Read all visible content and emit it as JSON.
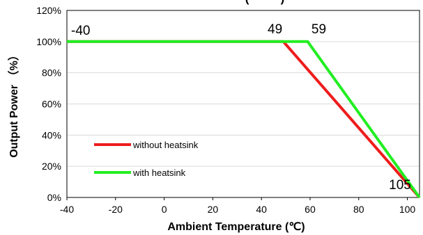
{
  "chart_data": {
    "type": "line",
    "title": "(········)",
    "xlabel": "Ambient Temperature (℃)",
    "ylabel": "Output Power （%）",
    "xlim": [
      -40,
      105
    ],
    "ylim": [
      0,
      120
    ],
    "x_ticks": [
      "-40",
      "-20",
      "0",
      "20",
      "40",
      "60",
      "80",
      "100"
    ],
    "x_tick_values": [
      -40,
      -20,
      0,
      20,
      40,
      60,
      80,
      100
    ],
    "y_ticks": [
      "0%",
      "20%",
      "40%",
      "60%",
      "80%",
      "100%",
      "120%"
    ],
    "y_tick_values": [
      0,
      20,
      40,
      60,
      80,
      100,
      120
    ],
    "grid": "horizontal",
    "legend_position": "lower-left",
    "series": [
      {
        "name": "without heatsink",
        "color": "#ee1c1c",
        "x": [
          -40,
          49,
          105
        ],
        "y": [
          100,
          100,
          0
        ]
      },
      {
        "name": "with heatsink",
        "color": "#22ee22",
        "x": [
          -40,
          59,
          105
        ],
        "y": [
          100,
          100,
          0
        ]
      }
    ],
    "annotations": [
      {
        "text": "-40",
        "x": -40,
        "y": 100
      },
      {
        "text": "49",
        "x": 49,
        "y": 100
      },
      {
        "text": "59",
        "x": 59,
        "y": 100
      },
      {
        "text": "105",
        "x": 105,
        "y": 0
      }
    ]
  }
}
